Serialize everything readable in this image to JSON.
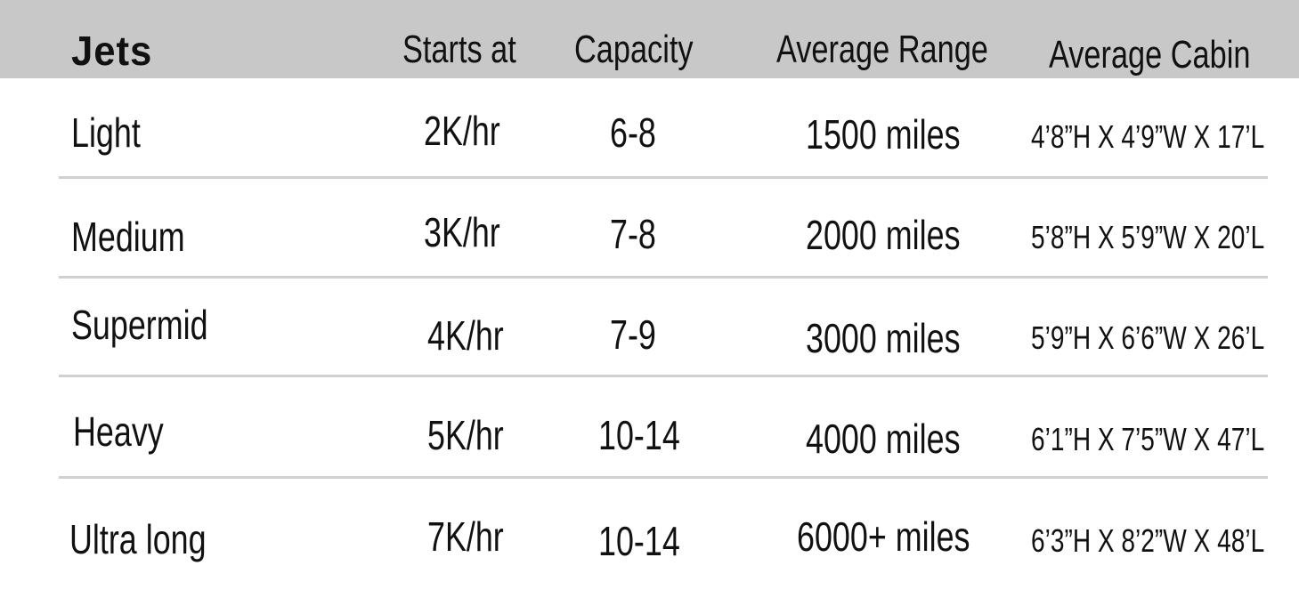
{
  "headers": {
    "jets": "Jets",
    "starts_at": "Starts at",
    "capacity": "Capacity",
    "average_range": "Average Range",
    "average_cabin": "Average Cabin"
  },
  "rows": [
    {
      "jet": "Light",
      "starts_at": "2K/hr",
      "capacity": "6-8",
      "range": "1500 miles",
      "cabin": "4’8”H X 4’9”W X 17’L"
    },
    {
      "jet": "Medium",
      "starts_at": "3K/hr",
      "capacity": "7-8",
      "range": "2000 miles",
      "cabin": "5’8”H X 5’9”W X 20’L"
    },
    {
      "jet": "Supermid",
      "starts_at": "4K/hr",
      "capacity": "7-9",
      "range": "3000 miles",
      "cabin": "5’9”H X 6’6”W X 26’L"
    },
    {
      "jet": "Heavy",
      "starts_at": "5K/hr",
      "capacity": "10-14",
      "range": "4000 miles",
      "cabin": "6’1”H X 7’5”W X 47’L"
    },
    {
      "jet": "Ultra long",
      "starts_at": "7K/hr",
      "capacity": "10-14",
      "range": "6000+ miles",
      "cabin": "6’3”H X 8’2”W X 48’L"
    }
  ],
  "colors": {
    "header_background": "#c8c8c8",
    "divider": "#d0d0d0",
    "text": "#111111"
  }
}
